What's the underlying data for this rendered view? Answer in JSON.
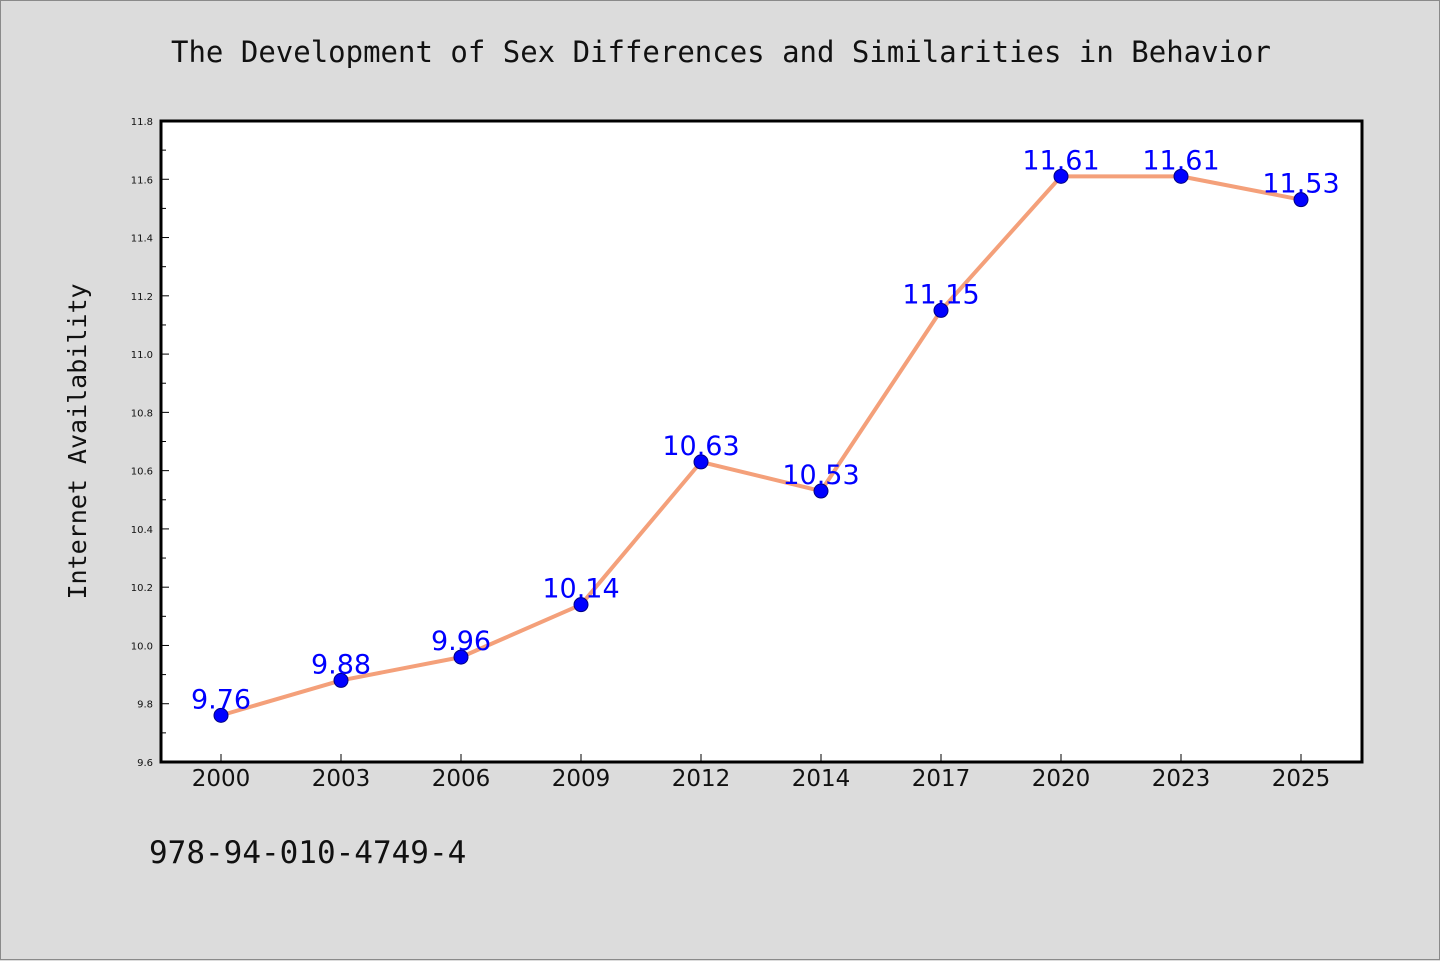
{
  "chart_data": {
    "type": "line",
    "title": "The Development of Sex Differences and Similarities in Behavior",
    "xlabel": "",
    "ylabel": "Internet Availability",
    "categories": [
      "2000",
      "2003",
      "2006",
      "2009",
      "2012",
      "2014",
      "2017",
      "2020",
      "2023",
      "2025"
    ],
    "series": [
      {
        "values": [
          9.76,
          9.88,
          9.96,
          10.14,
          10.63,
          10.53,
          11.15,
          11.61,
          11.61,
          11.53
        ]
      }
    ],
    "ylim": [
      9.6,
      11.8
    ],
    "yticks": [
      "9.6",
      "9.8",
      "10.0",
      "10.2",
      "10.4",
      "10.6",
      "10.8",
      "11.0",
      "11.2",
      "11.4",
      "11.6",
      "11.8"
    ],
    "data_labels": [
      "9.76",
      "9.88",
      "9.96",
      "10.14",
      "10.63",
      "10.53",
      "11.15",
      "11.61",
      "11.61",
      "11.53"
    ],
    "grid": false,
    "legend": "none",
    "colors": {
      "line": "#f4a07a",
      "marker": "#0000ff",
      "marker_edge": "#000080",
      "data_label": "#0000ff",
      "background": "#dcdcdc",
      "plot_area": "#ffffff"
    }
  },
  "footer": {
    "isbn": "978-94-010-4749-4"
  }
}
